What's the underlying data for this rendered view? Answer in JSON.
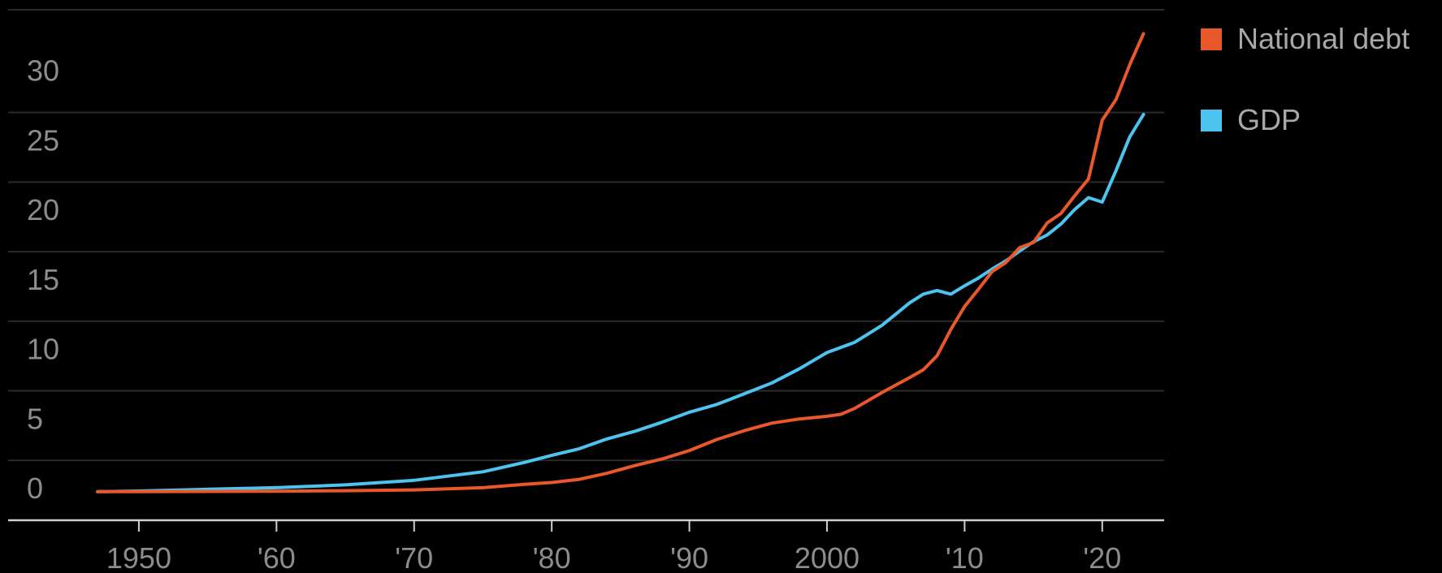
{
  "chart_data": {
    "type": "line",
    "title": "",
    "xlabel": "",
    "ylabel": "",
    "xlim": [
      1940.5,
      2024.5
    ],
    "ylim": [
      -1.8,
      35
    ],
    "grid": true,
    "legend_placement": "top-right",
    "y_ticks": [
      {
        "value": 0,
        "label": "0"
      },
      {
        "value": 5,
        "label": "5"
      },
      {
        "value": 10,
        "label": "10"
      },
      {
        "value": 15,
        "label": "15"
      },
      {
        "value": 20,
        "label": "20"
      },
      {
        "value": 25,
        "label": "25"
      },
      {
        "value": 30,
        "label": "30"
      }
    ],
    "x_ticks": [
      {
        "value": 1950,
        "label": "1950"
      },
      {
        "value": 1960,
        "label": "'60"
      },
      {
        "value": 1970,
        "label": "'70"
      },
      {
        "value": 1980,
        "label": "'80"
      },
      {
        "value": 1990,
        "label": "'90"
      },
      {
        "value": 2000,
        "label": "2000"
      },
      {
        "value": 2010,
        "label": "'10"
      },
      {
        "value": 2020,
        "label": "'20"
      }
    ],
    "series": [
      {
        "name": "National debt",
        "color": "#e8582a",
        "x": [
          1947,
          1950,
          1955,
          1960,
          1965,
          1970,
          1975,
          1978,
          1980,
          1982,
          1984,
          1986,
          1988,
          1990,
          1992,
          1994,
          1996,
          1998,
          2000,
          2001,
          2002,
          2004,
          2006,
          2007,
          2008,
          2009,
          2010,
          2011,
          2012,
          2013,
          2014,
          2015,
          2016,
          2017,
          2018,
          2019,
          2020,
          2021,
          2022,
          2023
        ],
        "values": [
          0.26,
          0.26,
          0.27,
          0.29,
          0.32,
          0.38,
          0.54,
          0.78,
          0.91,
          1.14,
          1.57,
          2.12,
          2.6,
          3.21,
          4.0,
          4.64,
          5.18,
          5.48,
          5.67,
          5.81,
          6.23,
          7.38,
          8.45,
          9.01,
          10.02,
          11.91,
          13.56,
          14.79,
          16.07,
          16.72,
          17.79,
          18.15,
          19.57,
          20.24,
          21.52,
          22.72,
          26.95,
          28.43,
          30.93,
          33.17
        ]
      },
      {
        "name": "GDP",
        "color": "#4cc4ef",
        "x": [
          1947,
          1950,
          1955,
          1960,
          1965,
          1970,
          1975,
          1978,
          1980,
          1982,
          1984,
          1986,
          1988,
          1990,
          1992,
          1994,
          1996,
          1998,
          2000,
          2002,
          2004,
          2006,
          2007,
          2008,
          2009,
          2010,
          2011,
          2012,
          2013,
          2014,
          2015,
          2016,
          2017,
          2018,
          2019,
          2020,
          2021,
          2022,
          2023
        ],
        "values": [
          0.25,
          0.3,
          0.43,
          0.54,
          0.74,
          1.07,
          1.68,
          2.35,
          2.86,
          3.34,
          4.04,
          4.58,
          5.24,
          5.96,
          6.52,
          7.29,
          8.07,
          9.09,
          10.25,
          10.98,
          12.21,
          13.82,
          14.45,
          14.71,
          14.45,
          15.05,
          15.6,
          16.25,
          16.84,
          17.55,
          18.21,
          18.7,
          19.48,
          20.53,
          21.38,
          21.06,
          23.32,
          25.74,
          27.36
        ]
      }
    ]
  }
}
